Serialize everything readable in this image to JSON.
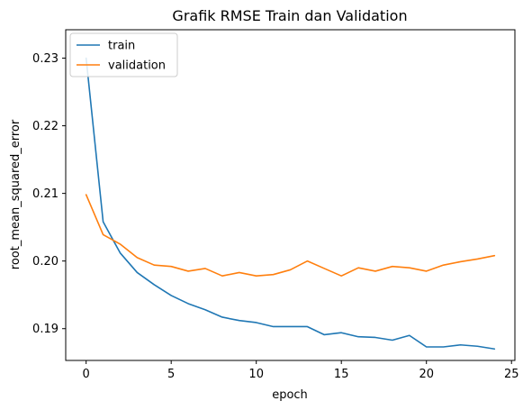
{
  "chart_data": {
    "type": "line",
    "title": "Grafik RMSE Train dan Validation",
    "xlabel": "epoch",
    "ylabel": "root_mean_squared_error",
    "xlim": [
      -1.2,
      25.2
    ],
    "ylim": [
      0.1853,
      0.2342
    ],
    "xticks": [
      0,
      5,
      10,
      15,
      20,
      25
    ],
    "yticks": [
      0.19,
      0.2,
      0.21,
      0.22,
      0.23
    ],
    "ytick_labels": [
      "0.19",
      "0.20",
      "0.21",
      "0.22",
      "0.23"
    ],
    "grid": false,
    "legend_position": "top-left",
    "x": [
      0,
      1,
      2,
      3,
      4,
      5,
      6,
      7,
      8,
      9,
      10,
      11,
      12,
      13,
      14,
      15,
      16,
      17,
      18,
      19,
      20,
      21,
      22,
      23,
      24
    ],
    "series": [
      {
        "name": "train",
        "color": "#1f77b4",
        "values": [
          0.23,
          0.2058,
          0.2012,
          0.1983,
          0.1965,
          0.1949,
          0.1937,
          0.1928,
          0.1917,
          0.1912,
          0.1909,
          0.1903,
          0.1903,
          0.1903,
          0.1891,
          0.1894,
          0.1888,
          0.1887,
          0.1883,
          0.189,
          0.1873,
          0.1873,
          0.1876,
          0.1874,
          0.187
        ]
      },
      {
        "name": "validation",
        "color": "#ff7f0e",
        "values": [
          0.2098,
          0.2039,
          0.2025,
          0.2005,
          0.1994,
          0.1992,
          0.1985,
          0.1989,
          0.1978,
          0.1983,
          0.1978,
          0.198,
          0.1987,
          0.2,
          0.1989,
          0.1978,
          0.199,
          0.1985,
          0.1992,
          0.199,
          0.1985,
          0.1994,
          0.1999,
          0.2003,
          0.2008
        ]
      }
    ]
  }
}
